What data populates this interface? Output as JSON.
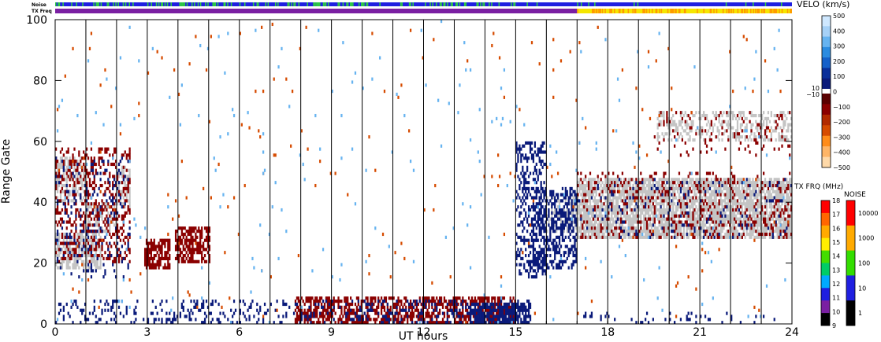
{
  "chart_data": {
    "type": "heatmap",
    "title": "",
    "xlabel": "UT hours",
    "ylabel": "Range Gate",
    "xlim": [
      0,
      24
    ],
    "ylim": [
      0,
      100
    ],
    "x_ticks": [
      "0",
      "3",
      "6",
      "9",
      "12",
      "15",
      "18",
      "21",
      "24"
    ],
    "y_ticks": [
      "0",
      "20",
      "40",
      "60",
      "80",
      "100"
    ],
    "hour_dividers": [
      1,
      2,
      3,
      4,
      5,
      6,
      7,
      8,
      9,
      10,
      11,
      12,
      13,
      14,
      15,
      16,
      17,
      18,
      19,
      20,
      21,
      22,
      23
    ],
    "status_bars": {
      "noise_label": "Noise",
      "txfreq_label": "TX Freq",
      "noise_segments": [
        {
          "from": 0,
          "to": 15,
          "color": "#2ecc40",
          "density": 0.35,
          "base": "#1f1fe0"
        },
        {
          "from": 15,
          "to": 24,
          "color": "#2ecc40",
          "density": 0.05,
          "base": "#1f1fe0"
        }
      ],
      "txfreq_segments": [
        {
          "from": 0,
          "to": 17,
          "color": "#7a1fa2"
        },
        {
          "from": 17,
          "to": 24,
          "color": "#f5e600",
          "accent": "#ff9a00"
        }
      ]
    },
    "velocity_colorbar": {
      "title": "VELO (km/s)",
      "ticks": [
        "500",
        "400",
        "300",
        "200",
        "100",
        "0",
        "−100",
        "−200",
        "−300",
        "−400",
        "−500"
      ],
      "zero_labels": [
        "10",
        "−10"
      ],
      "range": [
        -500,
        500
      ],
      "positive_colors": [
        "#cfe8ff",
        "#a6d1f7",
        "#66b3f0",
        "#2b8be0",
        "#1560c9",
        "#0a2f9a",
        "#0a1a7a"
      ],
      "negative_colors": [
        "#5a0000",
        "#8b0000",
        "#b22a00",
        "#d64b00",
        "#ff8c1a",
        "#ffb566",
        "#ffd9a8"
      ]
    },
    "txfreq_colorbar": {
      "title": "TX FRQ (MHz)",
      "ticks": [
        "18",
        "17",
        "16",
        "15",
        "14",
        "13",
        "12",
        "11",
        "10",
        "9"
      ],
      "colors": [
        "#ff0000",
        "#ff6600",
        "#ffaa00",
        "#ffee00",
        "#44dd00",
        "#00cc66",
        "#00aaff",
        "#1f1fe0",
        "#7a1fa2",
        "#000000"
      ]
    },
    "noise_colorbar": {
      "title": "NOISE",
      "ticks": [
        "10000",
        "1000",
        "100",
        "10",
        "1"
      ],
      "colors": [
        "#ff0000",
        "#ffaa00",
        "#33dd00",
        "#1f1fe0",
        "#000000"
      ]
    },
    "series": [
      {
        "color": "#c4c4c4",
        "values": [
          [
            0,
            1.0,
            40,
            55,
            0.55
          ],
          [
            0,
            1.5,
            18,
            30,
            0.6
          ],
          [
            1.0,
            2.0,
            30,
            40,
            0.5
          ],
          [
            2.0,
            2.4,
            38,
            52,
            0.5
          ],
          [
            16.0,
            17.0,
            30,
            42,
            0.4
          ],
          [
            17.0,
            24.0,
            28,
            48,
            0.75
          ],
          [
            18.5,
            19.5,
            40,
            46,
            0.5
          ],
          [
            19.6,
            24.0,
            60,
            70,
            0.35
          ]
        ]
      },
      {
        "color": "#8b0000",
        "values": [
          [
            0,
            2.4,
            20,
            58,
            0.28
          ],
          [
            2.9,
            3.7,
            18,
            28,
            0.7
          ],
          [
            3.9,
            5.0,
            20,
            32,
            0.6
          ],
          [
            7.8,
            15.0,
            0,
            9,
            0.55
          ],
          [
            17.0,
            24.0,
            28,
            50,
            0.15
          ],
          [
            19.5,
            24.0,
            55,
            70,
            0.08
          ]
        ]
      },
      {
        "color": "#0a1a7a",
        "values": [
          [
            0,
            2.4,
            15,
            55,
            0.1
          ],
          [
            0,
            15.5,
            0,
            8,
            0.18
          ],
          [
            13.5,
            15.5,
            0,
            7,
            0.7
          ],
          [
            15.0,
            16.0,
            15,
            60,
            0.35
          ],
          [
            15.5,
            17.0,
            18,
            45,
            0.4
          ],
          [
            17.0,
            24.0,
            0,
            4,
            0.08
          ],
          [
            17.0,
            24.0,
            28,
            48,
            0.06
          ]
        ]
      },
      {
        "color": "#d64b00",
        "values": [
          [
            0,
            24,
            0,
            100,
            0.004
          ]
        ]
      },
      {
        "color": "#66b3f0",
        "values": [
          [
            0,
            24,
            0,
            100,
            0.005
          ]
        ]
      }
    ]
  }
}
